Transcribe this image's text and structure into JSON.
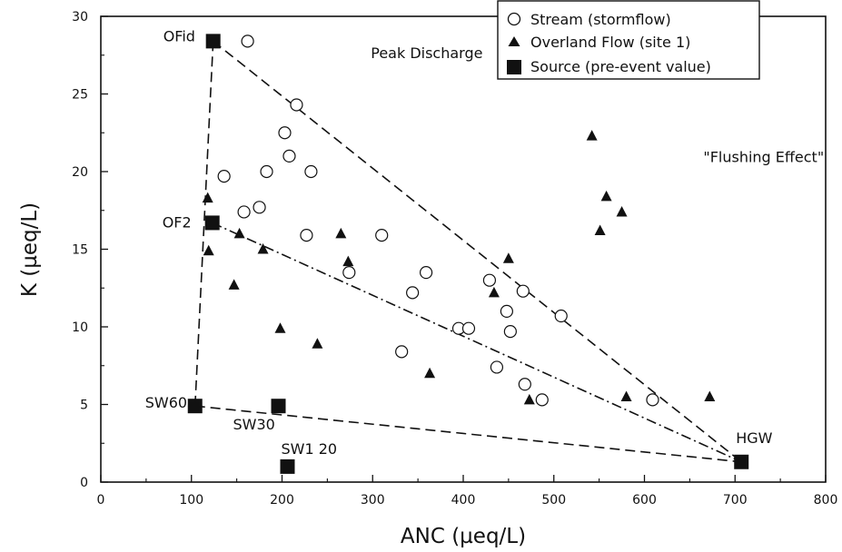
{
  "chart_data": {
    "type": "scatter",
    "xlabel": "ANC (µeq/L)",
    "ylabel": "K (µeq/L)",
    "xlim": [
      0,
      800
    ],
    "ylim": [
      0,
      30
    ],
    "xticks": [
      0,
      100,
      200,
      300,
      400,
      500,
      600,
      700,
      800
    ],
    "yticks": [
      0,
      5,
      10,
      15,
      20,
      25,
      30
    ],
    "grid": false,
    "legend_position": "top-right",
    "legend": [
      {
        "label": "Stream (stormflow)",
        "marker": "open-circle"
      },
      {
        "label": "Overland Flow (site 1)",
        "marker": "filled-triangle"
      },
      {
        "label": "Source (pre-event value)",
        "marker": "filled-square"
      }
    ],
    "series": [
      {
        "name": "Stream (stormflow)",
        "marker": "open-circle",
        "points": [
          [
            162,
            28.4
          ],
          [
            216,
            24.3
          ],
          [
            203,
            22.5
          ],
          [
            208,
            21
          ],
          [
            136,
            19.7
          ],
          [
            183,
            20
          ],
          [
            232,
            20
          ],
          [
            158,
            17.4
          ],
          [
            175,
            17.7
          ],
          [
            227,
            15.9
          ],
          [
            310,
            15.9
          ],
          [
            274,
            13.5
          ],
          [
            359,
            13.5
          ],
          [
            344,
            12.2
          ],
          [
            429,
            13
          ],
          [
            466,
            12.3
          ],
          [
            448,
            11
          ],
          [
            508,
            10.7
          ],
          [
            395,
            9.9
          ],
          [
            406,
            9.9
          ],
          [
            452,
            9.7
          ],
          [
            332,
            8.4
          ],
          [
            437,
            7.4
          ],
          [
            468,
            6.3
          ],
          [
            487,
            5.3
          ],
          [
            609,
            5.3
          ]
        ]
      },
      {
        "name": "Overland Flow (site 1)",
        "marker": "filled-triangle",
        "points": [
          [
            542,
            22.3
          ],
          [
            558,
            18.4
          ],
          [
            575,
            17.4
          ],
          [
            551,
            16.2
          ],
          [
            118,
            18.3
          ],
          [
            119,
            14.9
          ],
          [
            153,
            16
          ],
          [
            179,
            15
          ],
          [
            265,
            16
          ],
          [
            273,
            14.2
          ],
          [
            450,
            14.4
          ],
          [
            147,
            12.7
          ],
          [
            434,
            12.2
          ],
          [
            198,
            9.9
          ],
          [
            239,
            8.9
          ],
          [
            363,
            7
          ],
          [
            473,
            5.3
          ],
          [
            580,
            5.5
          ],
          [
            672,
            5.5
          ]
        ]
      },
      {
        "name": "Source (pre-event value)",
        "marker": "filled-square",
        "points": [
          {
            "label": "OFid",
            "x": 124,
            "y": 28.4
          },
          {
            "label": "OF2",
            "x": 123,
            "y": 16.7
          },
          {
            "label": "SW60",
            "x": 104,
            "y": 4.9
          },
          {
            "label": "SW30",
            "x": 196,
            "y": 4.9
          },
          {
            "label": "SW1 20",
            "x": 206,
            "y": 1
          },
          {
            "label": "HGW",
            "x": 707,
            "y": 1.3
          }
        ]
      }
    ],
    "lines": [
      {
        "style": "dashed",
        "points": [
          [
            124,
            28.4
          ],
          [
            707,
            1.3
          ]
        ]
      },
      {
        "style": "dashed",
        "points": [
          [
            124,
            28.4
          ],
          [
            104,
            4.9
          ]
        ]
      },
      {
        "style": "dashed",
        "points": [
          [
            104,
            4.9
          ],
          [
            707,
            1.3
          ]
        ]
      },
      {
        "style": "dash-dot",
        "points": [
          [
            123,
            16.7
          ],
          [
            707,
            1.3
          ]
        ]
      }
    ],
    "annotations": [
      {
        "text": "Peak Discharge",
        "x": 298,
        "y": 27.3
      },
      {
        "text": "\"Flushing Effect\"",
        "x": 665,
        "y": 20.6
      }
    ]
  }
}
